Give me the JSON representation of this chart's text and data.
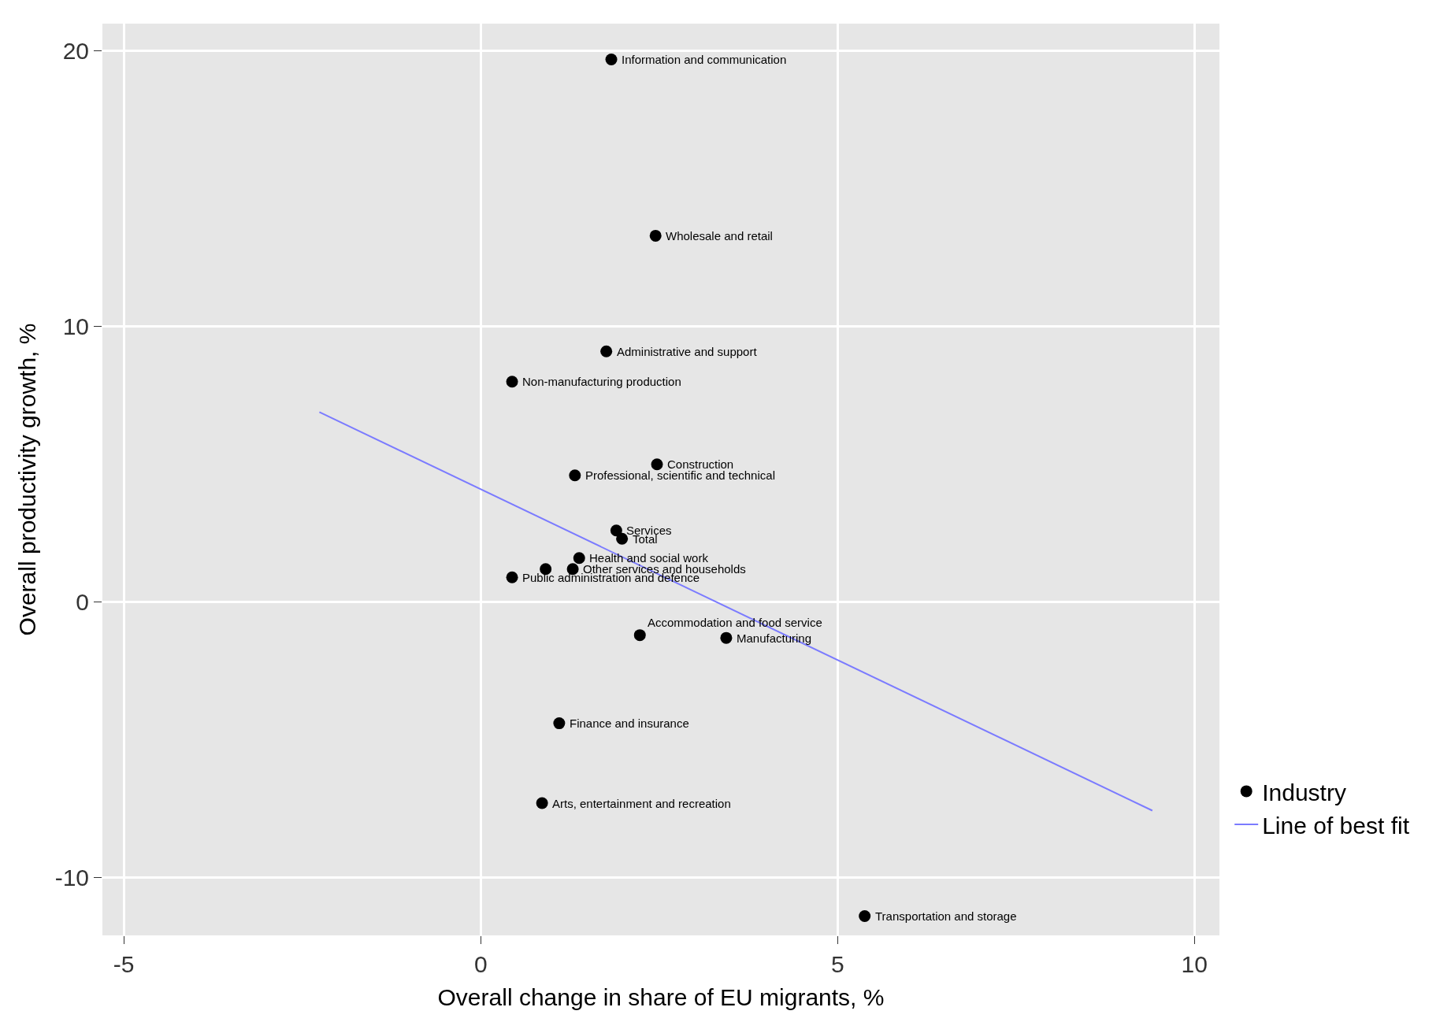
{
  "chart_data": {
    "type": "scatter",
    "xlabel": "Overall change in share of EU migrants, %",
    "ylabel": "Overall productivity growth, %",
    "xlim": [
      -5.3,
      10.35
    ],
    "ylim": [
      -12.1,
      21.0
    ],
    "xticks": [
      -5,
      0,
      5,
      10
    ],
    "yticks": [
      -10,
      0,
      10,
      20
    ],
    "grid": true,
    "legend": "right",
    "series": [
      {
        "name": "Industry",
        "color": "#000000",
        "marker": "circle",
        "x": [
          1.83,
          2.45,
          1.76,
          0.44,
          2.47,
          1.32,
          1.9,
          1.98,
          1.38,
          0.91,
          1.29,
          0.44,
          2.23,
          3.44,
          1.1,
          0.86,
          5.38
        ],
        "values": [
          19.7,
          13.3,
          9.1,
          8.0,
          5.0,
          4.6,
          2.6,
          2.3,
          1.6,
          1.2,
          1.2,
          0.9,
          -1.2,
          -1.3,
          -4.4,
          -7.3,
          -11.4
        ]
      },
      {
        "name": "Line of best fit",
        "color": "#7b7bff",
        "type": "line",
        "x": [
          -2.26,
          9.41
        ],
        "values": [
          6.9,
          -7.57
        ]
      }
    ],
    "annotations": [
      {
        "text": "Information and communication",
        "x": 1.83,
        "y": 19.7
      },
      {
        "text": "Wholesale and retail",
        "x": 2.45,
        "y": 13.3
      },
      {
        "text": "Administrative and support",
        "x": 1.76,
        "y": 9.1
      },
      {
        "text": "Non-manufacturing production",
        "x": 0.44,
        "y": 8.0
      },
      {
        "text": "Construction",
        "x": 2.47,
        "y": 5.0
      },
      {
        "text": "Professional, scientific and technical",
        "x": 1.32,
        "y": 4.6
      },
      {
        "text": "Services",
        "x": 1.9,
        "y": 2.6
      },
      {
        "text": "Total",
        "x": 1.98,
        "y": 2.3
      },
      {
        "text": "Health and social work",
        "x": 1.38,
        "y": 1.6
      },
      {
        "text": "Other services and households",
        "x": 1.29,
        "y": 1.2
      },
      {
        "text": "Public administration and defence",
        "x": 0.44,
        "y": 0.9
      },
      {
        "text": "Accommodation and food service",
        "x": 2.23,
        "y": -1.2
      },
      {
        "text": "Manufacturing",
        "x": 3.44,
        "y": -1.3
      },
      {
        "text": "Finance and insurance",
        "x": 1.1,
        "y": -4.4
      },
      {
        "text": "Arts, entertainment and recreation",
        "x": 0.86,
        "y": -7.3
      },
      {
        "text": "Transportation and storage",
        "x": 5.38,
        "y": -11.4
      }
    ]
  }
}
